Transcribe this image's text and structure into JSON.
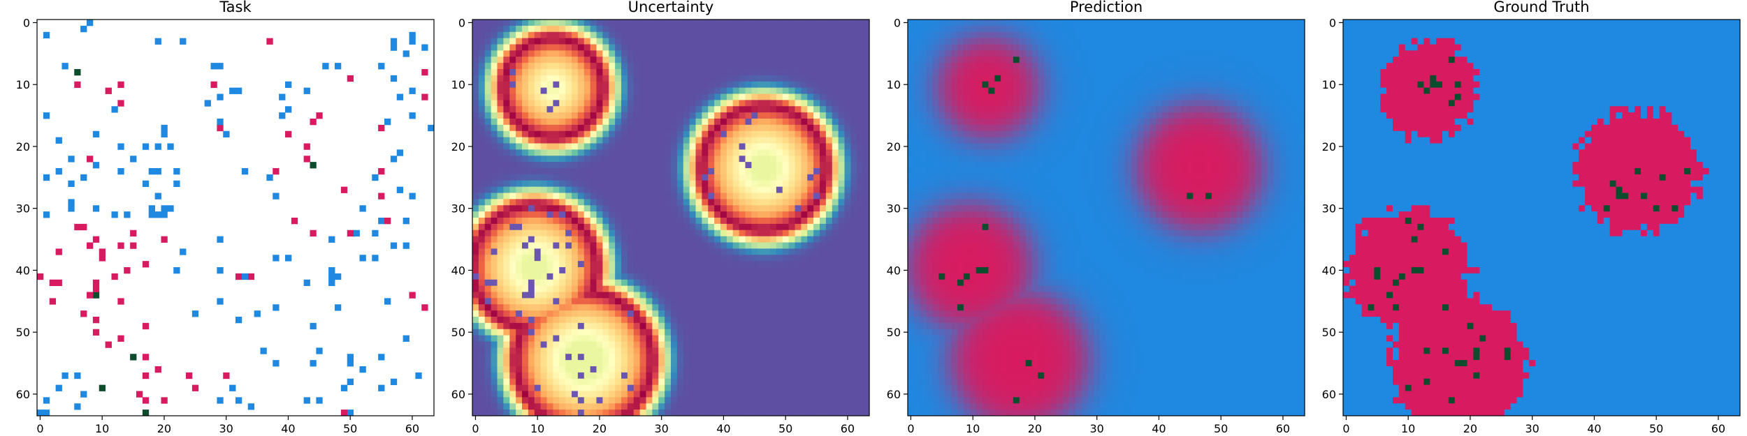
{
  "figure": {
    "panels": [
      "Task",
      "Uncertainty",
      "Prediction",
      "Ground Truth"
    ]
  },
  "chart_data": [
    {
      "type": "heatmap",
      "title": "Task",
      "grid_size": 64,
      "xlim": [
        -0.5,
        63.5
      ],
      "ylim": [
        63.5,
        -0.5
      ],
      "xticks": [
        0,
        10,
        20,
        30,
        40,
        50,
        60
      ],
      "yticks": [
        0,
        10,
        20,
        30,
        40,
        50,
        60
      ],
      "background": "#ffffff",
      "legend": null,
      "cell_classes": {
        "blue": "#1f88e0",
        "pink": "#d81b60",
        "green": "#0d4d2e"
      },
      "content": "sparse scattered single cells on white: roughly 130 blue (unlabeled/negative), 75 pink (positive), 6 dark green (seed)",
      "green_cells_approx": [
        [
          6,
          8
        ],
        [
          44,
          23
        ],
        [
          9,
          44
        ],
        [
          15,
          54
        ],
        [
          10,
          59
        ],
        [
          17,
          63
        ]
      ]
    },
    {
      "type": "heatmap",
      "title": "Uncertainty",
      "grid_size": 64,
      "xlim": [
        -0.5,
        63.5
      ],
      "ylim": [
        63.5,
        -0.5
      ],
      "xticks": [
        0,
        10,
        20,
        30,
        40,
        50,
        60
      ],
      "yticks": [
        0,
        10,
        20,
        30,
        40,
        50,
        60
      ],
      "colormap": "Spectral",
      "colorbar": false,
      "content": "low uncertainty (purple) away from regions; red ridge on region boundaries, pale yellow interiors",
      "regions_approx": [
        {
          "center": [
            13,
            11
          ],
          "radius": 8
        },
        {
          "center": [
            47,
            24
          ],
          "radius": 10
        },
        {
          "center": [
            10,
            40
          ],
          "radius": 10
        },
        {
          "center": [
            18,
            55
          ],
          "radius": 11
        }
      ]
    },
    {
      "type": "heatmap",
      "title": "Prediction",
      "grid_size": 64,
      "xlim": [
        -0.5,
        63.5
      ],
      "ylim": [
        63.5,
        -0.5
      ],
      "xticks": [
        0,
        10,
        20,
        30,
        40,
        50,
        60
      ],
      "yticks": [
        0,
        10,
        20,
        30,
        40,
        50,
        60
      ],
      "background": "#1f88e0",
      "colors": {
        "negative": "#1f88e0",
        "positive": "#d81b60",
        "seed": "#0d4d2e"
      },
      "content": "four soft-edged pink blobs on blue"
    },
    {
      "type": "heatmap",
      "title": "Ground Truth",
      "grid_size": 64,
      "xlim": [
        -0.5,
        63.5
      ],
      "ylim": [
        63.5,
        -0.5
      ],
      "xticks": [
        0,
        10,
        20,
        30,
        40,
        50,
        60
      ],
      "yticks": [
        0,
        10,
        20,
        30,
        40,
        50,
        60
      ],
      "background": "#1f88e0",
      "colors": {
        "negative": "#1f88e0",
        "positive": "#d81b60",
        "seed": "#0d4d2e"
      },
      "content": "four ragged-edged pink regions on blue with scattered dark green cells inside"
    }
  ]
}
